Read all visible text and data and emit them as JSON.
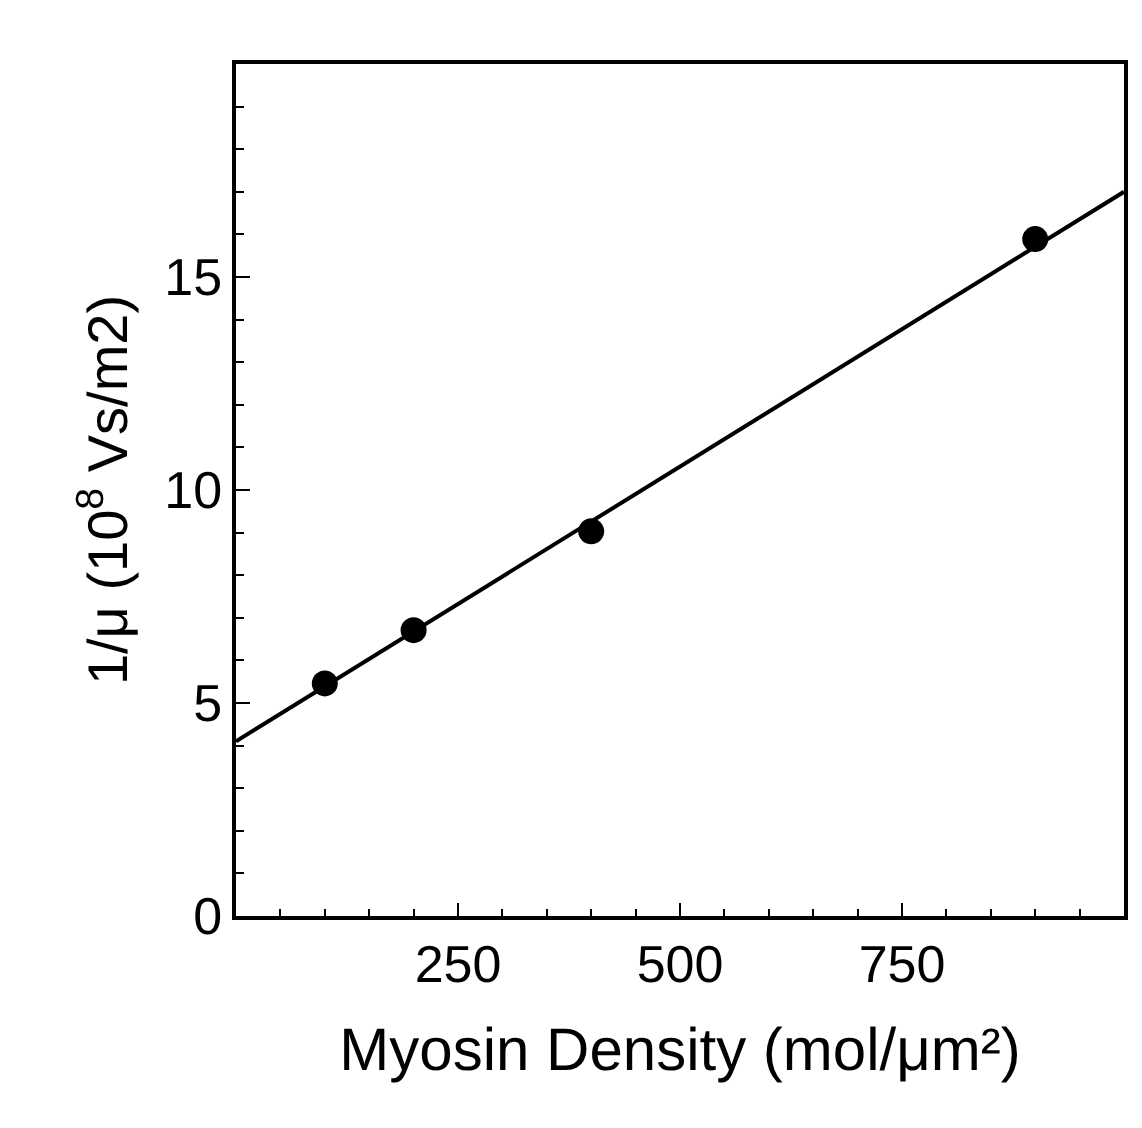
{
  "chart_data": {
    "type": "scatter",
    "xlabel": "Myosin Density (mol/μm²)",
    "ylabel": "1/μ (10$^{8}$ Vs/m2)",
    "xlim": [
      0,
      1000
    ],
    "xticks": [
      250,
      500,
      750
    ],
    "ylim": [
      0,
      20
    ],
    "yticks": [
      0,
      5,
      10,
      15
    ],
    "marker": "circle",
    "series": [
      {
        "color": "#000000",
        "x": [
          100,
          200,
          400,
          900
        ],
        "values": [
          5.46,
          6.71,
          9.03,
          15.89
        ]
      },
      {
        "type": "line",
        "color": "#000000",
        "marker": "none",
        "x": [
          0,
          1000
        ],
        "values": [
          4.1,
          17.0
        ]
      }
    ]
  }
}
